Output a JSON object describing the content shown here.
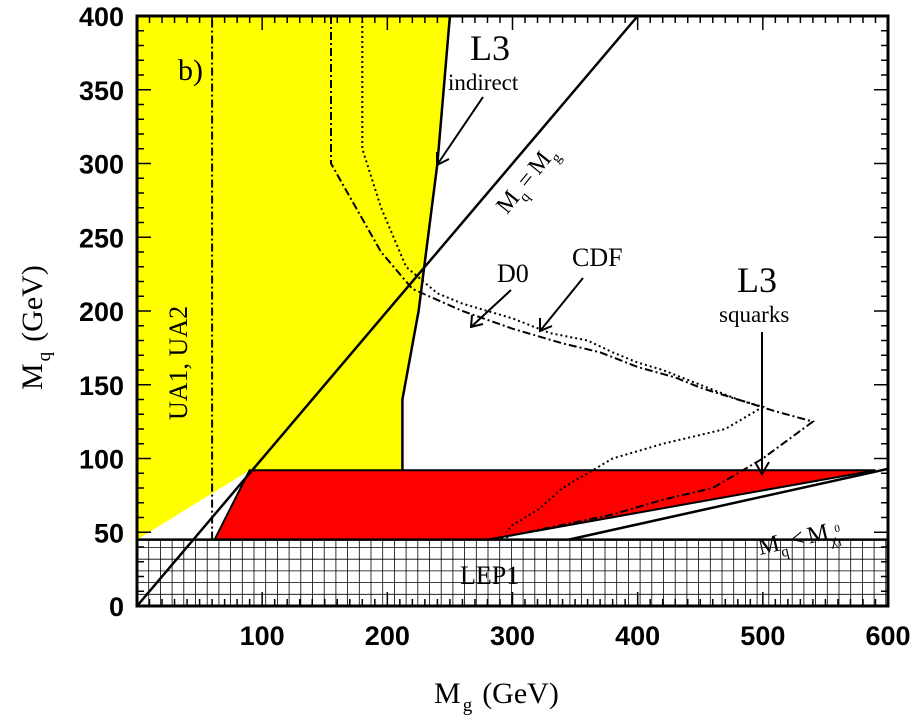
{
  "chart_data": {
    "type": "area",
    "panel_label": "b)",
    "xlabel": {
      "main": "M",
      "sub": "g",
      "unit": "(GeV)"
    },
    "ylabel": {
      "main": "M",
      "sub": "q",
      "unit": "(GeV)"
    },
    "xlim": [
      0,
      600
    ],
    "ylim": [
      0,
      400
    ],
    "x_ticks": [
      100,
      200,
      300,
      400,
      500,
      600
    ],
    "y_ticks": [
      0,
      50,
      100,
      150,
      200,
      250,
      300,
      350,
      400
    ],
    "regions": [
      {
        "name": "L3 indirect",
        "color": "#ffff00",
        "boundary": [
          [
            0,
            45
          ],
          [
            0,
            400
          ],
          [
            250,
            400
          ],
          [
            240,
            300
          ],
          [
            225,
            200
          ],
          [
            212,
            140
          ],
          [
            212,
            92
          ],
          [
            90,
            92
          ],
          [
            0,
            45
          ]
        ]
      },
      {
        "name": "L3 squarks",
        "color": "#ff0000",
        "boundary": [
          [
            90,
            92
          ],
          [
            590,
            92
          ],
          [
            280,
            45
          ],
          [
            62,
            45
          ]
        ]
      },
      {
        "name": "LEP1",
        "color": "#ffffff",
        "hatch": "grid",
        "boundary": [
          [
            0,
            0
          ],
          [
            600,
            0
          ],
          [
            600,
            45
          ],
          [
            0,
            45
          ]
        ]
      }
    ],
    "series": [
      {
        "name": "CDF",
        "style": "dotted",
        "x": [
          180,
          180,
          195,
          205,
          215,
          240,
          260,
          300,
          330,
          360,
          380,
          400,
          420,
          450,
          480,
          500,
          470,
          420,
          380,
          340,
          320,
          300,
          295
        ],
        "y": [
          400,
          310,
          270,
          250,
          230,
          212,
          205,
          195,
          185,
          180,
          172,
          165,
          160,
          150,
          140,
          135,
          120,
          110,
          100,
          80,
          65,
          55,
          50
        ]
      },
      {
        "name": "D0",
        "style": "dashdot",
        "x": [
          155,
          155,
          175,
          195,
          220,
          260,
          300,
          340,
          370,
          400,
          430,
          450,
          480,
          510,
          540,
          500,
          480,
          460,
          420,
          380,
          340,
          300,
          290
        ],
        "y": [
          400,
          300,
          270,
          240,
          215,
          200,
          188,
          178,
          172,
          162,
          155,
          148,
          140,
          132,
          125,
          100,
          90,
          80,
          72,
          62,
          55,
          48,
          45
        ]
      },
      {
        "name": "UA1, UA2",
        "style": "dashdot",
        "x": [
          60,
          60
        ],
        "y": [
          45,
          400
        ]
      },
      {
        "name": "M_q = M_g",
        "style": "solid",
        "x": [
          0,
          400
        ],
        "y": [
          0,
          400
        ]
      },
      {
        "name": "M_q < M_chi",
        "style": "solid",
        "x": [
          345,
          600
        ],
        "y": [
          45,
          93
        ]
      }
    ],
    "annotations": [
      {
        "text": "L3",
        "sub": "indirect"
      },
      {
        "text": "D0"
      },
      {
        "text": "CDF"
      },
      {
        "text": "L3",
        "sub": "squarks"
      },
      {
        "text": "UA1, UA2"
      },
      {
        "text": "LEP1"
      },
      {
        "text": "M",
        "sub1": "q",
        "op": "=",
        "text2": "M",
        "sub2": "g"
      },
      {
        "text": "M",
        "sub1": "q",
        "op": "<",
        "text2": "M",
        "sub2": "χ",
        "sup2": "0",
        "subsub2": "1"
      }
    ]
  }
}
